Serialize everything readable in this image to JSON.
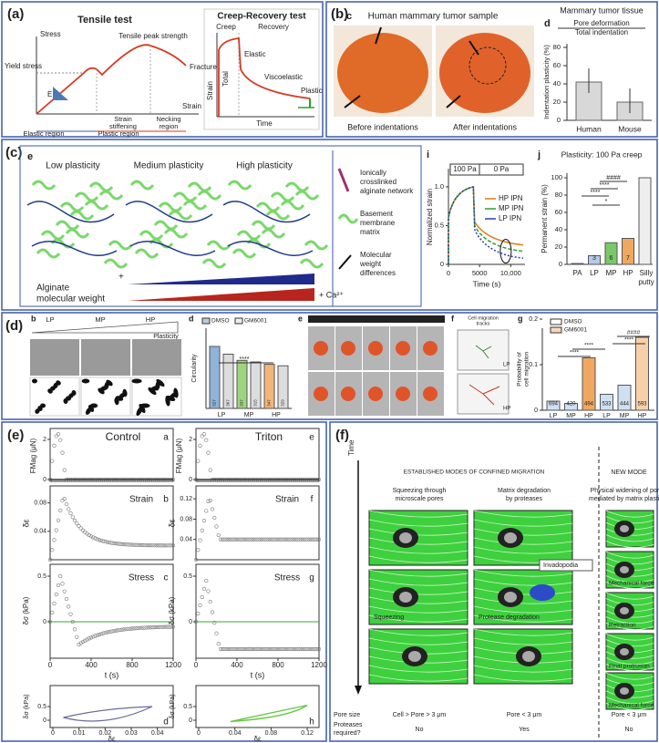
{
  "a": {
    "label": "(a)",
    "tensile": {
      "title": "Tensile test",
      "y_axis": "Stress",
      "x_axis": "Strain",
      "yield": "Yield stress",
      "peak": "Tensile peak strength",
      "fracture": "Fracture",
      "modulus": "E",
      "stiffening": [
        "Strain",
        "stiffening"
      ],
      "necking": [
        "Necking",
        "region"
      ],
      "elastic_region": "Elastic region",
      "plastic_region": "Plastic region"
    },
    "creep": {
      "title": "Creep-Recovery test",
      "creep": "Creep",
      "recovery": "Recovery",
      "y_axis": "Strain",
      "x_axis": "Time",
      "total": "Total",
      "elastic": "Elastic",
      "viscoelastic": "Viscoelastic",
      "plastic": "Plastic"
    }
  },
  "b": {
    "label": "(b)",
    "c": {
      "letter": "c",
      "title": "Human mammary tumor sample",
      "before": "Before indentations",
      "after": "After indentations"
    },
    "d": {
      "letter": "d",
      "title": "Mammary tumor tissue",
      "legend": [
        "Pore  deformation",
        "Total indentation"
      ],
      "y_axis": "Indentation plasticity (%)",
      "yticks": [
        0,
        20,
        40,
        60,
        80
      ],
      "categories": [
        "Human",
        "Mouse"
      ],
      "values": [
        42,
        20
      ]
    }
  },
  "c": {
    "label": "(c)",
    "e": {
      "letter": "e",
      "levels": [
        "Low plasticity",
        "Medium plasticity",
        "High plasticity"
      ],
      "legend": [
        [
          "Ionically",
          "crosslinked",
          "alginate network"
        ],
        [
          "Basement",
          "membrane",
          "matrix"
        ],
        [
          "Molecular",
          "weight",
          "differences"
        ]
      ],
      "alginate": [
        "Alginate",
        "molecular weight"
      ],
      "plus": "+",
      "calcium": "+ Ca²⁺"
    },
    "i": {
      "letter": "i",
      "phases": [
        "100 Pa",
        "0 Pa"
      ],
      "legend": [
        "HP IPN",
        "MP IPN",
        "LP IPN"
      ],
      "y_axis": "Normalized strain",
      "yticks": [
        0,
        0.5,
        {
          "value": 1,
          "label": "1.0"
        }
      ],
      "x_axis": "Time (s)",
      "xticks": [
        0,
        5000,
        {
          "value": 10000,
          "label": "10,000"
        }
      ]
    },
    "j": {
      "letter": "j",
      "title": "Plasticity: 100 Pa creep",
      "y_axis": "Permanent strain (%)",
      "yticks": [
        0,
        20,
        40,
        60,
        80,
        100
      ],
      "categories": [
        "PA",
        "LP",
        "MP",
        "HP",
        [
          "Silly",
          "putty"
        ]
      ],
      "values": [
        1,
        10,
        25,
        30,
        100
      ],
      "n": [
        3,
        6,
        7
      ],
      "significance": [
        "####",
        "****",
        "****",
        "*"
      ]
    }
  },
  "d": {
    "label": "(d)",
    "b": {
      "letter": "b",
      "levels": [
        "LP",
        "MP",
        "HP"
      ],
      "axis": "Plasticity"
    },
    "d": {
      "letter": "d",
      "legend": [
        "DMSO",
        "GM6001"
      ],
      "y_axis": "Circularity",
      "categories": [
        "LP",
        "MP",
        "HP"
      ],
      "values": [
        0.8,
        0.7,
        0.62,
        0.6,
        0.57,
        0.55
      ],
      "n": [
        327,
        367,
        337,
        315,
        347,
        329
      ],
      "significance": "****"
    },
    "e": {
      "letter": "e"
    },
    "f": {
      "letter": "f",
      "title": [
        "Cell migration",
        "tracks"
      ],
      "levels": [
        "LP",
        "HP"
      ]
    },
    "g": {
      "letter": "g",
      "legend": [
        "DMSO",
        "GM6001"
      ],
      "y_axis": [
        "Probability of",
        "cell migration"
      ],
      "yticks": [
        0,
        0.1,
        0.2
      ],
      "categories": [
        "LP",
        "MP",
        "HP",
        "LP",
        "MP",
        "HP"
      ],
      "values": [
        0.02,
        0.015,
        0.115,
        0.035,
        0.055,
        0.16
      ],
      "n": [
        694,
        420,
        494,
        533,
        444,
        593
      ],
      "significance": [
        "****",
        "****",
        "####",
        "****"
      ]
    }
  },
  "e": {
    "label": "(e)",
    "columns": [
      "Control",
      "Triton"
    ],
    "letters": [
      "a",
      "b",
      "c",
      "d",
      "e",
      "f",
      "g",
      "h"
    ],
    "rows": [
      "Strain",
      "Stress"
    ],
    "y_axes": [
      "FMag (μN)",
      "δε",
      "δσ (kPa)",
      "δσ (kPa)"
    ],
    "x_axes": [
      "t (s)",
      "δε"
    ],
    "t_ticks": [
      0,
      400,
      800,
      1200
    ],
    "force_ticks": [
      0,
      2
    ],
    "strain_ticks_left": [
      0.04,
      0.08
    ],
    "strain_ticks_right": [
      0.04,
      0.08,
      0.12
    ],
    "stress_ticks": [
      0,
      0.5
    ],
    "loop_y_ticks": [
      0,
      0.5
    ],
    "loop_x_left": [
      0,
      0.01,
      0.02,
      0.03,
      0.04
    ],
    "loop_x_right": [
      0,
      0.04,
      0.08,
      0.12
    ]
  },
  "f": {
    "label": "(f)",
    "time": "Time",
    "established": "ESTABLISHED MODES OF CONFINED MIGRATION",
    "new": "NEW MODE",
    "columns": [
      [
        "Squeezing through",
        "microscale pores"
      ],
      [
        "Matrix degradation",
        "by proteases"
      ],
      [
        "Physical widening of pores,",
        "mediated by matrix plasticity"
      ]
    ],
    "annotations": [
      "Squeezing",
      "Protease degradation",
      "Invadopodia",
      "Mechanical force",
      "Retraction",
      "Final protrusion",
      "Mechanical force"
    ],
    "row_labels": [
      "Pore size",
      [
        "Proteases",
        "required?"
      ]
    ],
    "pore_size": [
      "Cell > Pore > 3 μm",
      "Pore < 3 μm",
      "Pore < 3 μm"
    ],
    "proteases": [
      "No",
      "Yes",
      "No"
    ]
  }
}
